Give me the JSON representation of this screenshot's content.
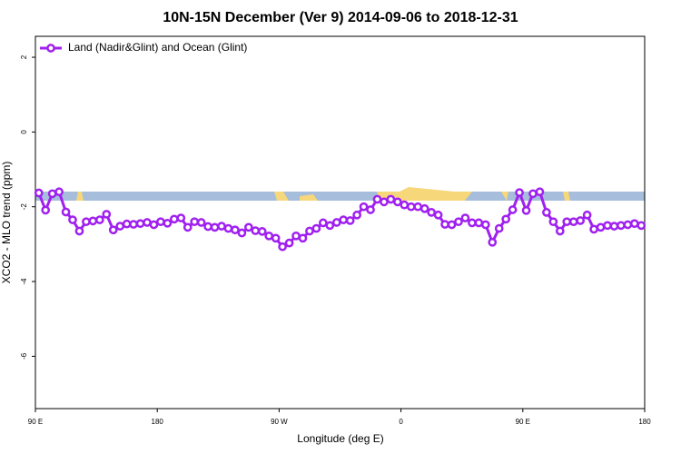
{
  "chart_data": {
    "type": "line",
    "title": "10N-15N December (Ver 9)   2014-09-06 to 2018-12-31",
    "x_label": "Longitude (deg E)",
    "y_label": "XCO2 - MLO trend (ppm)",
    "x": [
      92.5,
      97.5,
      102.5,
      107.5,
      112.5,
      117.5,
      122.5,
      127.5,
      132.5,
      137.5,
      142.5,
      147.5,
      152.5,
      157.5,
      162.5,
      167.5,
      172.5,
      177.5,
      182.5,
      187.5,
      192.5,
      197.5,
      202.5,
      207.5,
      212.5,
      217.5,
      222.5,
      227.5,
      232.5,
      237.5,
      242.5,
      247.5,
      252.5,
      257.5,
      262.5,
      267.5,
      272.5,
      277.5,
      282.5,
      287.5,
      292.5,
      297.5,
      302.5,
      307.5,
      312.5,
      317.5,
      322.5,
      327.5,
      332.5,
      337.5,
      342.5,
      347.5,
      352.5,
      357.5,
      362.5,
      367.5,
      372.5,
      377.5,
      382.5,
      387.5,
      392.5,
      397.5,
      402.5,
      407.5,
      412.5,
      417.5,
      422.5,
      427.5,
      432.5,
      437.5,
      442.5,
      447.5,
      452.5,
      457.5,
      462.5,
      467.5,
      472.5,
      477.5,
      482.5,
      487.5,
      492.5,
      497.5,
      502.5,
      507.5,
      512.5,
      517.5,
      522.5,
      527.5,
      532.5,
      537.5
    ],
    "series": [
      {
        "name": "Land (Nadir&Glint) and Ocean (Glint)",
        "color": "#a020f0",
        "values": [
          -1.63,
          -2.09,
          -1.65,
          -1.6,
          -2.14,
          -2.35,
          -2.65,
          -2.4,
          -2.38,
          -2.35,
          -2.2,
          -2.62,
          -2.52,
          -2.46,
          -2.47,
          -2.45,
          -2.42,
          -2.48,
          -2.4,
          -2.44,
          -2.33,
          -2.3,
          -2.55,
          -2.4,
          -2.42,
          -2.53,
          -2.55,
          -2.52,
          -2.58,
          -2.62,
          -2.7,
          -2.55,
          -2.64,
          -2.66,
          -2.78,
          -2.84,
          -3.07,
          -2.97,
          -2.78,
          -2.84,
          -2.65,
          -2.58,
          -2.43,
          -2.5,
          -2.42,
          -2.35,
          -2.37,
          -2.22,
          -2.0,
          -2.08,
          -1.8,
          -1.87,
          -1.8,
          -1.87,
          -1.95,
          -2.0,
          -2.0,
          -2.05,
          -2.15,
          -2.22,
          -2.47,
          -2.48,
          -2.4,
          -2.3,
          -2.43,
          -2.43,
          -2.48,
          -2.95,
          -2.58,
          -2.33,
          -2.08,
          -1.62,
          -2.1,
          -1.65,
          -1.6,
          -2.15,
          -2.4,
          -2.65,
          -2.4,
          -2.4,
          -2.37,
          -2.22,
          -2.6,
          -2.55,
          -2.5,
          -2.52,
          -2.5,
          -2.48,
          -2.45,
          -2.5
        ]
      }
    ],
    "xlim": [
      90,
      540
    ],
    "xticks": [
      {
        "value": 90,
        "label": "90 E"
      },
      180,
      {
        "value": 270,
        "label": "90 W"
      },
      {
        "value": 360,
        "label": "0"
      },
      {
        "value": 450,
        "label": "90 E"
      },
      {
        "value": 540,
        "label": "180"
      }
    ],
    "ylim": [
      -7.4,
      2.56
    ],
    "yticks": [
      2,
      0,
      -2,
      -4,
      -6
    ],
    "legend": "top-left"
  }
}
